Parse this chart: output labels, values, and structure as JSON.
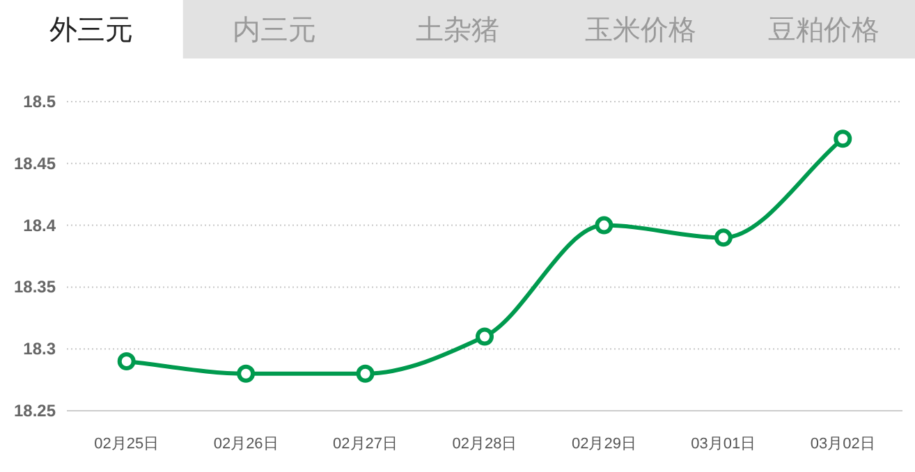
{
  "chart_data": {
    "type": "line",
    "title": "外三元",
    "annotations": [
      "内三元",
      "土杂猪",
      "玉米价格",
      "豆粕价格"
    ],
    "categories": [
      "02月25日",
      "02月26日",
      "02月27日",
      "02月28日",
      "02月29日",
      "03月01日",
      "03月02日"
    ],
    "values": [
      18.29,
      18.28,
      18.28,
      18.31,
      18.4,
      18.39,
      18.47
    ],
    "color": "#009a4e",
    "ylim": [
      18.25,
      18.5
    ],
    "yticks": [
      18.25,
      18.3,
      18.35,
      18.4,
      18.45,
      18.5
    ],
    "grid": "y",
    "marker": "circle"
  }
}
